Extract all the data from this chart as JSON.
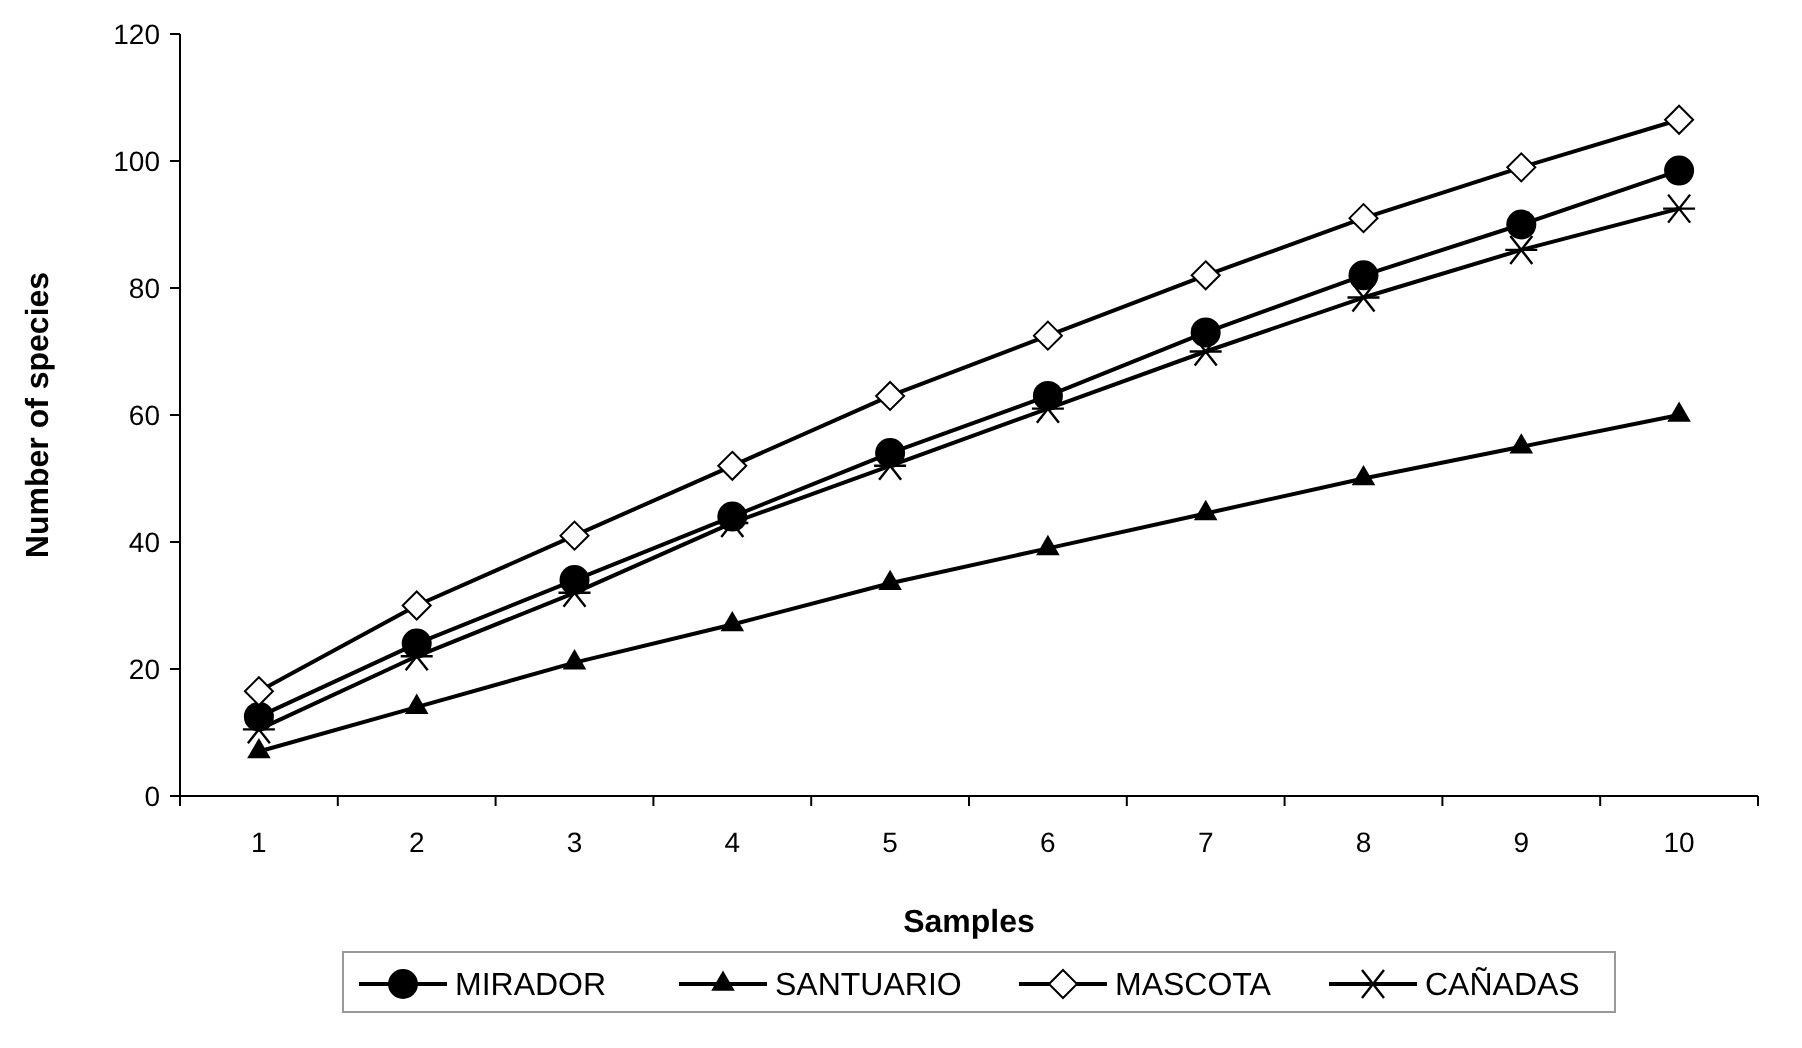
{
  "chart_data": {
    "type": "line",
    "xlabel": "Samples",
    "ylabel": "Number of species",
    "categories": [
      "1",
      "2",
      "3",
      "4",
      "5",
      "6",
      "7",
      "8",
      "9",
      "10"
    ],
    "series": [
      {
        "name": "MIRADOR",
        "color": "#000000",
        "marker": "circle",
        "values": [
          12.5,
          24,
          34,
          44,
          54,
          63,
          73,
          82,
          90,
          98.5
        ]
      },
      {
        "name": "SANTUARIO",
        "color": "#000000",
        "marker": "triangle",
        "values": [
          7,
          14,
          21,
          27,
          33.5,
          39,
          44.5,
          50,
          55,
          60
        ]
      },
      {
        "name": "MASCOTA",
        "color": "#000000",
        "marker": "diamond",
        "values": [
          16.5,
          30,
          41,
          52,
          63,
          72.5,
          82,
          91,
          99,
          106.5
        ]
      },
      {
        "name": "CAÑADAS",
        "color": "#000000",
        "marker": "cross",
        "values": [
          10.5,
          22,
          32,
          43,
          52,
          61,
          70,
          78.5,
          86,
          92.5
        ]
      }
    ],
    "ylim": [
      0,
      120
    ],
    "yticks": [
      0,
      20,
      40,
      60,
      80,
      100,
      120
    ],
    "grid": false,
    "legend": "bottom",
    "line_style": "solid"
  }
}
